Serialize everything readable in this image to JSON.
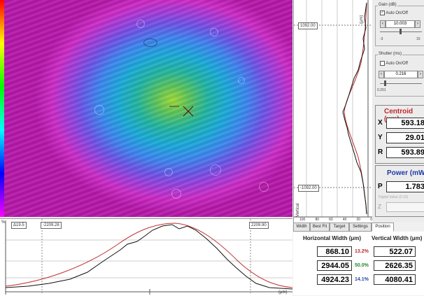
{
  "horizontal_profile": {
    "left_cursor": "-2209.28",
    "right_cursor": "2209.90",
    "corner_label": "Δ19.5",
    "axis_unit": "(μm)",
    "y_axis_label": "%"
  },
  "vertical_profile": {
    "top_cursor": "1092.00",
    "bottom_cursor": "-1092.00",
    "axis_label": "Vertical",
    "top_unit": "(μm)",
    "scale_labels": [
      "100",
      "80",
      "60",
      "40",
      "20",
      "0"
    ]
  },
  "gain": {
    "label": "Gain (dB)",
    "auto_label": "Auto On/Off",
    "auto_checked": true,
    "value": "10.003",
    "scale_min": "-3",
    "scale_max": "15"
  },
  "shutter": {
    "label": "Shutter (ms)",
    "auto_label": "Auto On/Off",
    "auto_checked": false,
    "value": "0.216",
    "scale_min": "0.201"
  },
  "centroid": {
    "title": "Centroid (μm)",
    "rows": [
      {
        "label": "X",
        "value": "593.18"
      },
      {
        "label": "Y",
        "value": "29.01"
      },
      {
        "label": "R",
        "value": "593.89"
      }
    ]
  },
  "power": {
    "title": "Power (mW)",
    "label": "P",
    "value": "1.783",
    "z_label": "Z",
    "hint": "Digital Value (2-16)"
  },
  "tabs": [
    "Width",
    "Best Fit",
    "Target",
    "Settings",
    "Position"
  ],
  "widths": {
    "horizontal_header": "Horizontal Width (μm)",
    "vertical_header": "Vertical Width (μm)",
    "rows": [
      {
        "h": "868.10",
        "pct": "13.2%",
        "v": "522.07",
        "color": "#c0282c"
      },
      {
        "h": "2944.05",
        "pct": "50.0%",
        "v": "2626.35",
        "color": "#1f8a2e"
      },
      {
        "h": "4924.23",
        "pct": "14.1%",
        "v": "4080.41",
        "color": "#2844a8"
      }
    ]
  },
  "colors": {
    "accent_red": "#c0282c",
    "accent_blue": "#1f3aa6"
  }
}
